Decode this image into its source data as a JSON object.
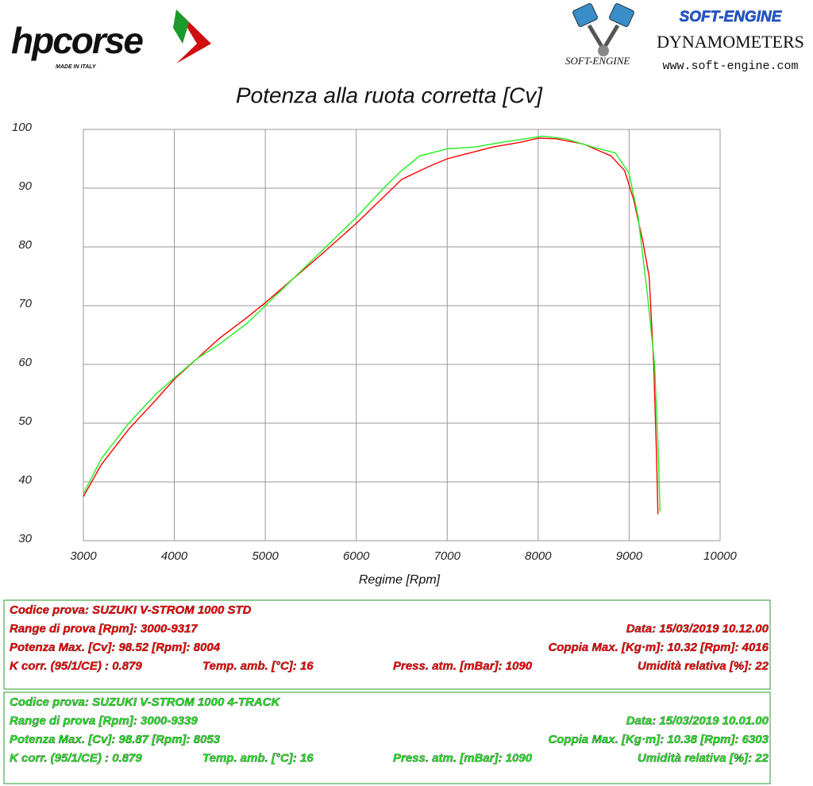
{
  "header": {
    "brand": "hpcorse",
    "brand_sub": "MADE IN ITALY",
    "dyno_brand": "SOFT-ENGINE",
    "dyno_title": "DYNAMOMETERS",
    "dyno_logo_text": "SOFT-ENGINE",
    "dyno_url": "www.soft-engine.com"
  },
  "chart_data": {
    "type": "line",
    "title": "Potenza alla ruota corretta [Cv]",
    "x_label": "Regime [Rpm]",
    "xlim": [
      3000,
      10000
    ],
    "xticks": [
      3000,
      4000,
      5000,
      6000,
      7000,
      8000,
      9000,
      10000
    ],
    "ylim": [
      30,
      100
    ],
    "yticks": [
      30,
      40,
      50,
      60,
      70,
      80,
      90,
      100
    ],
    "grid": true,
    "series": [
      {
        "color": "#ff0000",
        "x": [
          3000,
          3200,
          3500,
          3800,
          4000,
          4250,
          4500,
          4800,
          5000,
          5300,
          5600,
          6000,
          6300,
          6500,
          6800,
          7000,
          7200,
          7500,
          7800,
          8004,
          8200,
          8500,
          8800,
          8950,
          9050,
          9150,
          9220,
          9270,
          9300,
          9317
        ],
        "values": [
          37.5,
          43,
          49,
          54,
          57.5,
          61,
          64.5,
          68,
          70.5,
          74.5,
          78.5,
          84,
          88.5,
          91.5,
          93.7,
          95,
          95.8,
          97,
          97.8,
          98.52,
          98.4,
          97.5,
          95.5,
          93,
          88,
          81,
          75,
          60,
          45,
          34.5
        ]
      },
      {
        "color": "#22ee22",
        "x": [
          3000,
          3200,
          3500,
          3800,
          4000,
          4250,
          4500,
          4800,
          5000,
          5300,
          5600,
          6000,
          6300,
          6500,
          6700,
          7000,
          7300,
          7600,
          8053,
          8300,
          8600,
          8850,
          9000,
          9100,
          9200,
          9280,
          9320,
          9339
        ],
        "values": [
          38,
          44,
          50,
          55,
          57.7,
          61,
          63.5,
          67,
          70,
          74.5,
          79,
          85,
          90,
          93,
          95.5,
          96.7,
          97,
          97.8,
          98.87,
          98.4,
          97,
          96,
          92.5,
          85,
          72,
          60,
          45,
          35
        ]
      }
    ]
  },
  "test_info": [
    {
      "color": "#ff0000",
      "rows": [
        [
          "Codice prova: SUZUKI V-STROM 1000 STD"
        ],
        [
          "Range di prova [Rpm]: 3000-9317",
          "Data: 15/03/2019   10.12.00"
        ],
        [
          "Potenza Max. [Cv]: 98.52   [Rpm]: 8004",
          "Coppia Max. [Kg·m]: 10.32   [Rpm]: 4016"
        ],
        [
          "K corr. (95/1/CE) : 0.879",
          "Temp. amb. [°C]: 16",
          "Press. atm. [mBar]: 1090",
          "Umidità relativa [%]: 22"
        ]
      ]
    },
    {
      "color": "#22ee22",
      "rows": [
        [
          "Codice prova: SUZUKI V-STROM 1000  4-TRACK"
        ],
        [
          "Range di prova [Rpm]: 3000-9339",
          "Data: 15/03/2019   10.01.00"
        ],
        [
          "Potenza Max. [Cv]: 98.87   [Rpm]: 8053",
          "Coppia Max. [Kg·m]: 10.38   [Rpm]: 6303"
        ],
        [
          "K corr. (95/1/CE) : 0.879",
          "Temp. amb. [°C]: 16",
          "Press. atm. [mBar]: 1090",
          "Umidità relativa [%]: 22"
        ]
      ]
    }
  ]
}
